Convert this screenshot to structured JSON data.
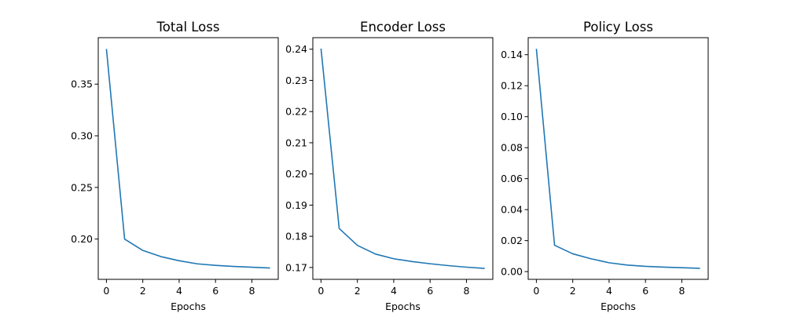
{
  "figure": {
    "background": "#ffffff",
    "line_color": "#1f77b4"
  },
  "chart_data": [
    {
      "type": "line",
      "title": "Total Loss",
      "xlabel": "Epochs",
      "ylabel": "",
      "x": [
        0,
        1,
        2,
        3,
        4,
        5,
        6,
        7,
        8,
        9
      ],
      "series": [
        {
          "values": [
            0.384,
            0.2,
            0.189,
            0.183,
            0.179,
            0.176,
            0.1745,
            0.1735,
            0.1727,
            0.172
          ]
        }
      ],
      "xlim": [
        -0.45,
        9.45
      ],
      "ylim": [
        0.161,
        0.395
      ],
      "xticks": [
        0,
        2,
        4,
        6,
        8
      ],
      "xtick_labels": [
        "0",
        "2",
        "4",
        "6",
        "8"
      ],
      "yticks": [
        0.2,
        0.25,
        0.3,
        0.35
      ],
      "ytick_labels": [
        "0.20",
        "0.25",
        "0.30",
        "0.35"
      ],
      "grid": false,
      "legend": "none"
    },
    {
      "type": "line",
      "title": "Encoder Loss",
      "xlabel": "Epochs",
      "ylabel": "",
      "x": [
        0,
        1,
        2,
        3,
        4,
        5,
        6,
        7,
        8,
        9
      ],
      "series": [
        {
          "values": [
            0.2402,
            0.1825,
            0.1771,
            0.1743,
            0.1728,
            0.1719,
            0.1712,
            0.1706,
            0.1701,
            0.1697
          ]
        }
      ],
      "xlim": [
        -0.45,
        9.45
      ],
      "ylim": [
        0.1662,
        0.2437
      ],
      "xticks": [
        0,
        2,
        4,
        6,
        8
      ],
      "xtick_labels": [
        "0",
        "2",
        "4",
        "6",
        "8"
      ],
      "yticks": [
        0.17,
        0.18,
        0.19,
        0.2,
        0.21,
        0.22,
        0.23,
        0.24
      ],
      "ytick_labels": [
        "0.17",
        "0.18",
        "0.19",
        "0.20",
        "0.21",
        "0.22",
        "0.23",
        "0.24"
      ],
      "grid": false,
      "legend": "none"
    },
    {
      "type": "line",
      "title": "Policy Loss",
      "xlabel": "Epochs",
      "ylabel": "",
      "x": [
        0,
        1,
        2,
        3,
        4,
        5,
        6,
        7,
        8,
        9
      ],
      "series": [
        {
          "values": [
            0.1438,
            0.017,
            0.0115,
            0.0083,
            0.0057,
            0.0042,
            0.0034,
            0.0029,
            0.0025,
            0.0021
          ]
        }
      ],
      "xlim": [
        -0.45,
        9.45
      ],
      "ylim": [
        -0.005,
        0.151
      ],
      "xticks": [
        0,
        2,
        4,
        6,
        8
      ],
      "xtick_labels": [
        "0",
        "2",
        "4",
        "6",
        "8"
      ],
      "yticks": [
        0.0,
        0.02,
        0.04,
        0.06,
        0.08,
        0.1,
        0.12,
        0.14
      ],
      "ytick_labels": [
        "0.00",
        "0.02",
        "0.04",
        "0.06",
        "0.08",
        "0.10",
        "0.12",
        "0.14"
      ],
      "grid": false,
      "legend": "none"
    }
  ]
}
